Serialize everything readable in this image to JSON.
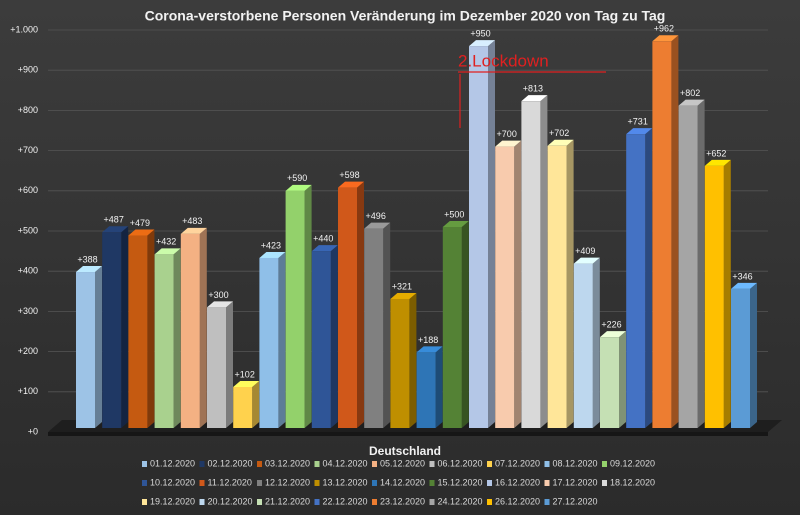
{
  "chart_data": {
    "type": "bar3d",
    "title": "Corona-verstorbene Personen Veränderung im Dezember 2020 von Tag zu Tag",
    "categories": [
      "Deutschland"
    ],
    "annotation": "2.Lockdown",
    "ylim": [
      0,
      1000
    ],
    "yticks": [
      {
        "value": 0,
        "label": "+0"
      },
      {
        "value": 100,
        "label": "+100"
      },
      {
        "value": 200,
        "label": "+200"
      },
      {
        "value": 300,
        "label": "+300"
      },
      {
        "value": 400,
        "label": "+400"
      },
      {
        "value": 500,
        "label": "+500"
      },
      {
        "value": 600,
        "label": "+600"
      },
      {
        "value": 700,
        "label": "+700"
      },
      {
        "value": 800,
        "label": "+800"
      },
      {
        "value": 900,
        "label": "+900"
      },
      {
        "value": 1000,
        "label": "+1.000"
      }
    ],
    "grid": true,
    "legend": "bottom",
    "series": [
      {
        "name": "01.12.2020",
        "color": "#9dc3e6",
        "values": [
          388
        ],
        "value_labels": [
          "+388"
        ]
      },
      {
        "name": "02.12.2020",
        "color": "#1f3864",
        "values": [
          487
        ],
        "value_labels": [
          "+487"
        ]
      },
      {
        "name": "03.12.2020",
        "color": "#c55a11",
        "values": [
          479
        ],
        "value_labels": [
          "+479"
        ]
      },
      {
        "name": "04.12.2020",
        "color": "#a9d18e",
        "values": [
          432
        ],
        "value_labels": [
          "+432"
        ]
      },
      {
        "name": "05.12.2020",
        "color": "#f4b183",
        "values": [
          483
        ],
        "value_labels": [
          "+483"
        ]
      },
      {
        "name": "06.12.2020",
        "color": "#bfbfbf",
        "values": [
          300
        ],
        "value_labels": [
          "+300"
        ]
      },
      {
        "name": "07.12.2020",
        "color": "#ffd24d",
        "values": [
          102
        ],
        "value_labels": [
          "+102"
        ]
      },
      {
        "name": "08.12.2020",
        "color": "#8fbfe8",
        "values": [
          423
        ],
        "value_labels": [
          "+423"
        ]
      },
      {
        "name": "09.12.2020",
        "color": "#93d16b",
        "values": [
          590
        ],
        "value_labels": [
          "+590"
        ]
      },
      {
        "name": "10.12.2020",
        "color": "#2f5597",
        "values": [
          440
        ],
        "value_labels": [
          "+440"
        ]
      },
      {
        "name": "11.12.2020",
        "color": "#d0581a",
        "values": [
          598
        ],
        "value_labels": [
          "+598"
        ]
      },
      {
        "name": "12.12.2020",
        "color": "#808080",
        "values": [
          496
        ],
        "value_labels": [
          "+496"
        ]
      },
      {
        "name": "13.12.2020",
        "color": "#bf8f00",
        "values": [
          321
        ],
        "value_labels": [
          "+321"
        ]
      },
      {
        "name": "14.12.2020",
        "color": "#2e75b6",
        "values": [
          188
        ],
        "value_labels": [
          "+188"
        ]
      },
      {
        "name": "15.12.2020",
        "color": "#548235",
        "values": [
          500
        ],
        "value_labels": [
          "+500"
        ]
      },
      {
        "name": "16.12.2020",
        "color": "#b4c7e7",
        "values": [
          950
        ],
        "value_labels": [
          "+950"
        ]
      },
      {
        "name": "17.12.2020",
        "color": "#f8cbad",
        "values": [
          700
        ],
        "value_labels": [
          "+700"
        ]
      },
      {
        "name": "18.12.2020",
        "color": "#d9d9d9",
        "values": [
          813
        ],
        "value_labels": [
          "+813"
        ]
      },
      {
        "name": "19.12.2020",
        "color": "#ffe699",
        "values": [
          702
        ],
        "value_labels": [
          "+702"
        ]
      },
      {
        "name": "20.12.2020",
        "color": "#bdd7ee",
        "values": [
          409
        ],
        "value_labels": [
          "+409"
        ]
      },
      {
        "name": "21.12.2020",
        "color": "#c5e0b4",
        "values": [
          226
        ],
        "value_labels": [
          "+226"
        ]
      },
      {
        "name": "22.12.2020",
        "color": "#4472c4",
        "values": [
          731
        ],
        "value_labels": [
          "+731"
        ]
      },
      {
        "name": "23.12.2020",
        "color": "#ed7d31",
        "values": [
          962
        ],
        "value_labels": [
          "+962"
        ]
      },
      {
        "name": "24.12.2020",
        "color": "#a5a5a5",
        "values": [
          802
        ],
        "value_labels": [
          "+802"
        ]
      },
      {
        "name": "26.12.2020",
        "color": "#ffc000",
        "values": [
          652
        ],
        "value_labels": [
          "+652"
        ]
      },
      {
        "name": "27.12.2020",
        "color": "#5b9bd5",
        "values": [
          346
        ],
        "value_labels": [
          "+346"
        ]
      }
    ]
  }
}
